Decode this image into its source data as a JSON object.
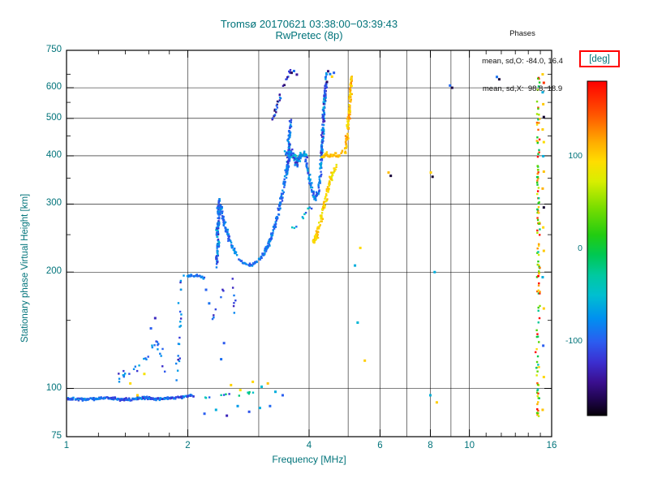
{
  "chart_data": {
    "type": "scatter",
    "title": "Tromsø 20170621 03:38:00−03:39:43",
    "subtitle": "RwPretec (8p)",
    "xlabel": "Frequency [MHz]",
    "ylabel": "Stationary phase Virtual Height [km]",
    "x_scale": "log",
    "y_scale": "log",
    "xlim": [
      1,
      16
    ],
    "ylim": [
      75,
      750
    ],
    "x_tick_labels": [
      1,
      2,
      4,
      6,
      8,
      10,
      16
    ],
    "x_gridlines": [
      2,
      3,
      4,
      5,
      6,
      7,
      8,
      9,
      10
    ],
    "x_minor_ticks": [
      1.2,
      1.4,
      1.6,
      1.8,
      11,
      12,
      13,
      14,
      15
    ],
    "y_tick_labels": [
      75,
      100,
      200,
      300,
      400,
      500,
      600,
      750
    ],
    "y_gridlines": [
      100,
      200,
      300,
      400,
      500,
      600
    ],
    "y_minor_ticks": [
      150,
      250,
      350,
      450,
      550,
      650
    ],
    "annotations": {
      "phases_title": "Phases",
      "phases_o": "mean, sd,O: -84.0, 16.4",
      "phases_x": "mean, sd,X:  98.8, 18.9"
    },
    "legend": {
      "label": "[deg]",
      "ticks": [
        100,
        0,
        -100
      ],
      "range": [
        180,
        -180
      ],
      "position": "right",
      "stops": [
        [
          0.0,
          "#ff0000"
        ],
        [
          0.1,
          "#ff5500"
        ],
        [
          0.18,
          "#ffaa00"
        ],
        [
          0.24,
          "#ffdd00"
        ],
        [
          0.3,
          "#d8ee00"
        ],
        [
          0.38,
          "#77dd00"
        ],
        [
          0.46,
          "#22cc11"
        ],
        [
          0.52,
          "#00c853"
        ],
        [
          0.58,
          "#00c9a0"
        ],
        [
          0.64,
          "#00bfd0"
        ],
        [
          0.71,
          "#0090f0"
        ],
        [
          0.78,
          "#2b5cf0"
        ],
        [
          0.84,
          "#3b2fd0"
        ],
        [
          0.9,
          "#3a0f8f"
        ],
        [
          0.95,
          "#200550"
        ],
        [
          1.0,
          "#060008"
        ]
      ]
    },
    "traces": [
      {
        "name": "e-layer-band",
        "phase": -95,
        "spread": 28,
        "density": 1.8,
        "jx": 1.5,
        "jy": 1.8,
        "points": [
          [
            1.0,
            94
          ],
          [
            1.1,
            93.5
          ],
          [
            1.25,
            94.5
          ],
          [
            1.4,
            93.5
          ],
          [
            1.55,
            94.5
          ],
          [
            1.7,
            94
          ],
          [
            1.85,
            94.5
          ],
          [
            2.0,
            95.5
          ],
          [
            2.07,
            96
          ]
        ]
      },
      {
        "name": "e-band-extension",
        "phase": -65,
        "spread": 55,
        "density": 0.14,
        "jx": 2,
        "jy": 2.5,
        "points": [
          [
            2.12,
            96
          ],
          [
            2.3,
            95
          ],
          [
            2.5,
            97
          ],
          [
            2.7,
            96
          ],
          [
            2.9,
            98
          ],
          [
            3.1,
            97
          ]
        ]
      },
      {
        "name": "left-scatter-cluster",
        "phase": -95,
        "spread": 35,
        "density": 0.28,
        "jx": 4,
        "jy": 7,
        "points": [
          [
            1.36,
            107
          ],
          [
            1.46,
            112
          ],
          [
            1.54,
            118
          ],
          [
            1.62,
            126
          ],
          [
            1.68,
            132
          ],
          [
            1.74,
            118
          ],
          [
            1.78,
            108
          ]
        ]
      },
      {
        "name": "es-column",
        "phase": -110,
        "spread": 45,
        "density": 0.16,
        "jx": 2.5,
        "jy": 6,
        "points": [
          [
            1.87,
            104
          ],
          [
            1.9,
            126
          ],
          [
            1.92,
            148
          ],
          [
            1.9,
            168
          ],
          [
            1.93,
            188
          ],
          [
            1.96,
            200
          ]
        ]
      },
      {
        "name": "ledge-195km",
        "phase": -95,
        "spread": 22,
        "density": 1.1,
        "jx": 1.5,
        "jy": 2,
        "points": [
          [
            1.99,
            196
          ],
          [
            2.06,
            195
          ],
          [
            2.13,
            196
          ],
          [
            2.2,
            193
          ]
        ]
      },
      {
        "name": "sparse-mid",
        "phase": -100,
        "spread": 30,
        "density": 0.13,
        "jx": 2,
        "jy": 4,
        "points": [
          [
            2.3,
            147
          ],
          [
            2.36,
            160
          ],
          [
            2.42,
            173
          ],
          [
            2.46,
            186
          ]
        ]
      },
      {
        "name": "cusp-column",
        "phase": -90,
        "spread": 38,
        "density": 1.3,
        "jx": 2.2,
        "jy": 3,
        "points": [
          [
            2.36,
            208
          ],
          [
            2.38,
            232
          ],
          [
            2.37,
            255
          ],
          [
            2.39,
            278
          ],
          [
            2.38,
            296
          ],
          [
            2.41,
            310
          ]
        ]
      },
      {
        "name": "f-trace-arc",
        "phase": -88,
        "spread": 22,
        "density": 1.15,
        "jx": 2,
        "jy": 2.5,
        "points": [
          [
            2.41,
            298
          ],
          [
            2.46,
            270
          ],
          [
            2.52,
            248
          ],
          [
            2.58,
            232
          ],
          [
            2.66,
            219
          ],
          [
            2.75,
            211
          ],
          [
            2.86,
            208
          ],
          [
            2.97,
            212
          ],
          [
            3.07,
            221
          ],
          [
            3.17,
            236
          ],
          [
            3.27,
            257
          ],
          [
            3.36,
            287
          ],
          [
            3.43,
            317
          ],
          [
            3.49,
            348
          ],
          [
            3.53,
            372
          ],
          [
            3.57,
            393
          ],
          [
            3.61,
            408
          ]
        ]
      },
      {
        "name": "sub-trace",
        "phase": -100,
        "spread": 30,
        "density": 0.12,
        "jx": 2,
        "jy": 3,
        "points": [
          [
            2.57,
            196
          ],
          [
            2.6,
            181
          ],
          [
            2.62,
            166
          ],
          [
            2.6,
            151
          ]
        ]
      },
      {
        "name": "m-cluster",
        "phase": -92,
        "spread": 48,
        "density": 1.5,
        "jx": 3,
        "jy": 6,
        "points": [
          [
            3.44,
            392
          ],
          [
            3.52,
            406
          ],
          [
            3.6,
            412
          ],
          [
            3.67,
            398
          ],
          [
            3.73,
            381
          ],
          [
            3.79,
            396
          ],
          [
            3.86,
            408
          ],
          [
            3.93,
            399
          ]
        ]
      },
      {
        "name": "v-dip",
        "phase": -86,
        "spread": 26,
        "density": 0.85,
        "jx": 2,
        "jy": 3,
        "points": [
          [
            3.93,
            392
          ],
          [
            3.99,
            358
          ],
          [
            4.06,
            330
          ],
          [
            4.13,
            309
          ],
          [
            4.19,
            316
          ],
          [
            4.25,
            342
          ],
          [
            4.29,
            368
          ]
        ]
      },
      {
        "name": "spike1-vertical",
        "phase": -96,
        "spread": 32,
        "density": 1.15,
        "jx": 2,
        "jy": 3,
        "points": [
          [
            3.53,
            362
          ],
          [
            3.56,
            402
          ],
          [
            3.57,
            442
          ],
          [
            3.59,
            472
          ],
          [
            3.61,
            492
          ]
        ]
      },
      {
        "name": "spike1-diagonal",
        "phase": -112,
        "spread": 52,
        "density": 0.5,
        "jx": 2,
        "jy": 3,
        "points": [
          [
            3.25,
            497
          ],
          [
            3.31,
            527
          ],
          [
            3.37,
            557
          ],
          [
            3.43,
            587
          ],
          [
            3.48,
            616
          ],
          [
            3.53,
            641
          ],
          [
            3.58,
            663
          ]
        ]
      },
      {
        "name": "spike2-vertical",
        "phase": -96,
        "spread": 40,
        "density": 1.2,
        "jx": 1.8,
        "jy": 3,
        "points": [
          [
            4.28,
            372
          ],
          [
            4.31,
            422
          ],
          [
            4.33,
            472
          ],
          [
            4.35,
            522
          ],
          [
            4.37,
            567
          ],
          [
            4.39,
            612
          ],
          [
            4.42,
            650
          ]
        ]
      },
      {
        "name": "x-mode-lower-leg",
        "phase": 95,
        "spread": 20,
        "density": 0.95,
        "jx": 2.5,
        "jy": 3,
        "points": [
          [
            4.12,
            238
          ],
          [
            4.18,
            251
          ],
          [
            4.25,
            268
          ],
          [
            4.33,
            291
          ],
          [
            4.42,
            316
          ],
          [
            4.51,
            341
          ],
          [
            4.59,
            363
          ],
          [
            4.67,
            383
          ]
        ]
      },
      {
        "name": "x-mode-start-blob",
        "phase": 100,
        "spread": 15,
        "density": 2.0,
        "jx": 2.5,
        "jy": 3,
        "points": [
          [
            4.09,
            239
          ],
          [
            4.13,
            243
          ],
          [
            4.17,
            248
          ]
        ]
      },
      {
        "name": "x-mode-band-400",
        "phase": 100,
        "spread": 18,
        "density": 1.5,
        "jx": 2,
        "jy": 3,
        "points": [
          [
            4.31,
            398
          ],
          [
            4.41,
            403
          ],
          [
            4.51,
            398
          ],
          [
            4.61,
            404
          ],
          [
            4.71,
            400
          ],
          [
            4.81,
            405
          ],
          [
            4.91,
            409
          ]
        ]
      },
      {
        "name": "x-mode-top-vertical",
        "phase": 108,
        "spread": 24,
        "density": 1.05,
        "jx": 1.8,
        "jy": 3,
        "points": [
          [
            4.93,
            416
          ],
          [
            4.97,
            452
          ],
          [
            5.01,
            492
          ],
          [
            5.04,
            532
          ],
          [
            5.06,
            572
          ],
          [
            5.08,
            612
          ],
          [
            5.11,
            642
          ]
        ]
      },
      {
        "name": "lower-parallel-trace",
        "phase": -70,
        "spread": 45,
        "density": 0.22,
        "jx": 2.5,
        "jy": 4,
        "points": [
          [
            3.5,
            252
          ],
          [
            3.62,
            259
          ],
          [
            3.74,
            267
          ],
          [
            3.87,
            277
          ],
          [
            3.99,
            289
          ],
          [
            4.09,
            301
          ]
        ]
      },
      {
        "name": "right-edge-column",
        "phase": 75,
        "spread": 115,
        "density": 0.3,
        "jx": 2.5,
        "jy": 6,
        "points": [
          [
            14.7,
            84
          ],
          [
            14.8,
            102
          ],
          [
            14.75,
            132
          ],
          [
            14.85,
            172
          ],
          [
            14.8,
            212
          ],
          [
            14.85,
            262
          ],
          [
            14.8,
            312
          ],
          [
            14.85,
            372
          ],
          [
            14.8,
            432
          ],
          [
            14.85,
            502
          ],
          [
            14.8,
            572
          ],
          [
            14.85,
            645
          ]
        ]
      }
    ],
    "isolated_points": [
      [
        1.44,
        103,
        95
      ],
      [
        1.5,
        96,
        100
      ],
      [
        1.56,
        109,
        88
      ],
      [
        1.62,
        143,
        -100
      ],
      [
        1.66,
        152,
        -128
      ],
      [
        2.2,
        86,
        -100
      ],
      [
        2.35,
        88,
        -60
      ],
      [
        2.5,
        85,
        -130
      ],
      [
        2.66,
        90,
        -70
      ],
      [
        2.84,
        87,
        -105
      ],
      [
        3.02,
        89,
        -60
      ],
      [
        3.2,
        90,
        -95
      ],
      [
        2.56,
        102,
        98
      ],
      [
        2.7,
        99,
        92
      ],
      [
        2.9,
        104,
        96
      ],
      [
        3.05,
        101,
        -52
      ],
      [
        3.16,
        103,
        104
      ],
      [
        3.3,
        98,
        -60
      ],
      [
        3.44,
        96,
        -100
      ],
      [
        2.42,
        119,
        -92
      ],
      [
        2.46,
        131,
        -102
      ],
      [
        2.22,
        180,
        -98
      ],
      [
        2.26,
        166,
        -90
      ],
      [
        5.28,
        148,
        -55
      ],
      [
        5.5,
        118,
        100
      ],
      [
        5.2,
        208,
        -60
      ],
      [
        5.36,
        231,
        95
      ],
      [
        6.3,
        362,
        108
      ],
      [
        6.38,
        355,
        -168
      ],
      [
        8.02,
        362,
        100
      ],
      [
        8.1,
        353,
        -170
      ],
      [
        8.2,
        200,
        -60
      ],
      [
        8.0,
        96,
        -58
      ],
      [
        8.3,
        92,
        100
      ],
      [
        8.95,
        608,
        -95
      ],
      [
        9.06,
        600,
        -165
      ],
      [
        11.7,
        640,
        -90
      ],
      [
        11.86,
        631,
        -168
      ],
      [
        4.46,
        662,
        -150
      ],
      [
        4.51,
        651,
        -85
      ],
      [
        4.43,
        621,
        -158
      ],
      [
        4.56,
        641,
        98
      ],
      [
        4.61,
        656,
        -100
      ],
      [
        3.62,
        656,
        -158
      ],
      [
        3.67,
        663,
        -92
      ],
      [
        3.73,
        649,
        -140
      ],
      [
        15.2,
        650,
        100
      ],
      [
        15.3,
        618,
        158
      ],
      [
        15.2,
        584,
        -60
      ],
      [
        15.25,
        544,
        102
      ],
      [
        15.3,
        504,
        -170
      ],
      [
        15.2,
        468,
        100
      ],
      [
        15.3,
        434,
        92
      ],
      [
        15.25,
        399,
        -60
      ],
      [
        15.3,
        364,
        104
      ],
      [
        15.2,
        329,
        112
      ],
      [
        15.3,
        294,
        -170
      ],
      [
        15.25,
        261,
        96
      ],
      [
        15.3,
        227,
        102
      ],
      [
        15.2,
        194,
        -60
      ],
      [
        15.3,
        161,
        100
      ],
      [
        15.25,
        129,
        -100
      ],
      [
        15.3,
        107,
        96
      ],
      [
        15.2,
        88,
        104
      ]
    ]
  }
}
